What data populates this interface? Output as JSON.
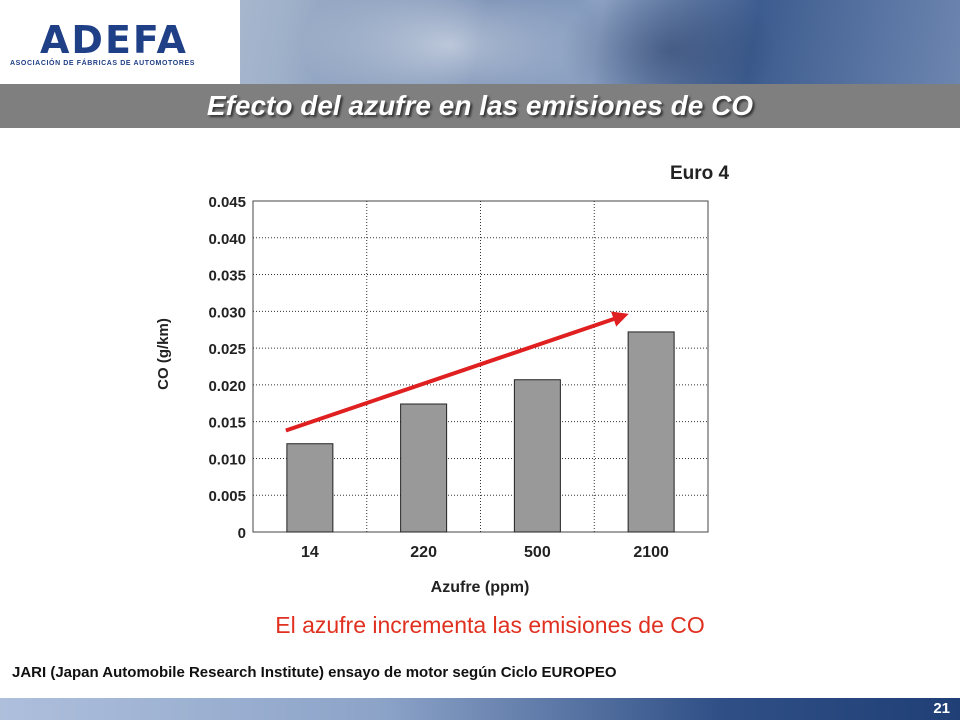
{
  "header": {
    "logo_text": "ADEFA",
    "logo_subtitle": "ASOCIACIÓN DE FÁBRICAS DE AUTOMOTORES"
  },
  "slide": {
    "title": "Efecto del azufre en las emisiones de CO",
    "euro_label": "Euro 4",
    "red_caption": "El azufre incrementa las emisiones de CO",
    "footnote": "JARI (Japan Automobile Research Institute) ensayo de motor según Ciclo EUROPEO",
    "page_number": "21"
  },
  "chart_data": {
    "type": "bar",
    "categories": [
      "14",
      "220",
      "500",
      "2100"
    ],
    "values": [
      0.012,
      0.0174,
      0.0207,
      0.0272
    ],
    "xlabel": "Azufre (ppm)",
    "ylabel": "CO (g/km)",
    "ylim": [
      0,
      0.045
    ],
    "yticks": [
      "0",
      "0.005",
      "0.010",
      "0.015",
      "0.020",
      "0.025",
      "0.030",
      "0.035",
      "0.040",
      "0.045"
    ],
    "grid": true,
    "trend_arrow": {
      "from_value": 0.0138,
      "to_value": 0.0293,
      "color": "#e02020"
    },
    "bar_color": "#999999"
  }
}
